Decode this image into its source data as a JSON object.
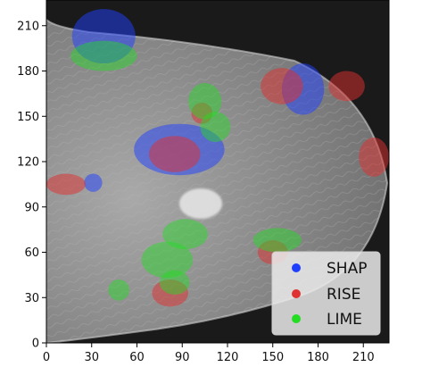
{
  "chart_data": {
    "type": "scatter",
    "title": "",
    "xlabel": "",
    "ylabel": "",
    "xlim": [
      0,
      227
    ],
    "ylim": [
      0,
      227
    ],
    "xticks": [
      0,
      30,
      60,
      90,
      120,
      150,
      180,
      210
    ],
    "yticks": [
      0,
      30,
      60,
      90,
      120,
      150,
      180,
      210
    ],
    "grid": false,
    "legend_position": "bottom-right",
    "background": "grayscale mammogram image",
    "series": [
      {
        "name": "SHAP",
        "color": "#1f3fff",
        "regions": [
          {
            "cx": 38,
            "cy": 203,
            "rx": 21,
            "ry": 18
          },
          {
            "cx": 88,
            "cy": 128,
            "rx": 30,
            "ry": 17
          },
          {
            "cx": 170,
            "cy": 168,
            "rx": 14,
            "ry": 17
          },
          {
            "cx": 31,
            "cy": 106,
            "rx": 6,
            "ry": 6
          }
        ]
      },
      {
        "name": "RISE",
        "color": "#e03030",
        "regions": [
          {
            "cx": 13,
            "cy": 105,
            "rx": 13,
            "ry": 7
          },
          {
            "cx": 156,
            "cy": 170,
            "rx": 14,
            "ry": 12
          },
          {
            "cx": 199,
            "cy": 170,
            "rx": 12,
            "ry": 10
          },
          {
            "cx": 217,
            "cy": 123,
            "rx": 10,
            "ry": 13
          },
          {
            "cx": 85,
            "cy": 125,
            "rx": 17,
            "ry": 12
          },
          {
            "cx": 103,
            "cy": 152,
            "rx": 7,
            "ry": 7
          },
          {
            "cx": 82,
            "cy": 33,
            "rx": 12,
            "ry": 9
          },
          {
            "cx": 150,
            "cy": 60,
            "rx": 10,
            "ry": 8
          }
        ]
      },
      {
        "name": "LIME",
        "color": "#22dd22",
        "regions": [
          {
            "cx": 38,
            "cy": 190,
            "rx": 22,
            "ry": 10
          },
          {
            "cx": 105,
            "cy": 160,
            "rx": 11,
            "ry": 12
          },
          {
            "cx": 112,
            "cy": 143,
            "rx": 10,
            "ry": 10
          },
          {
            "cx": 92,
            "cy": 72,
            "rx": 15,
            "ry": 10
          },
          {
            "cx": 80,
            "cy": 55,
            "rx": 17,
            "ry": 12
          },
          {
            "cx": 85,
            "cy": 40,
            "rx": 10,
            "ry": 8
          },
          {
            "cx": 48,
            "cy": 35,
            "rx": 7,
            "ry": 7
          },
          {
            "cx": 153,
            "cy": 68,
            "rx": 16,
            "ry": 8
          }
        ]
      }
    ]
  },
  "colors": {
    "shap": "#1f3fff",
    "rise": "#e03030",
    "lime": "#22dd22",
    "background": "#1a1a1a",
    "tissue": "#8a8a8a"
  }
}
